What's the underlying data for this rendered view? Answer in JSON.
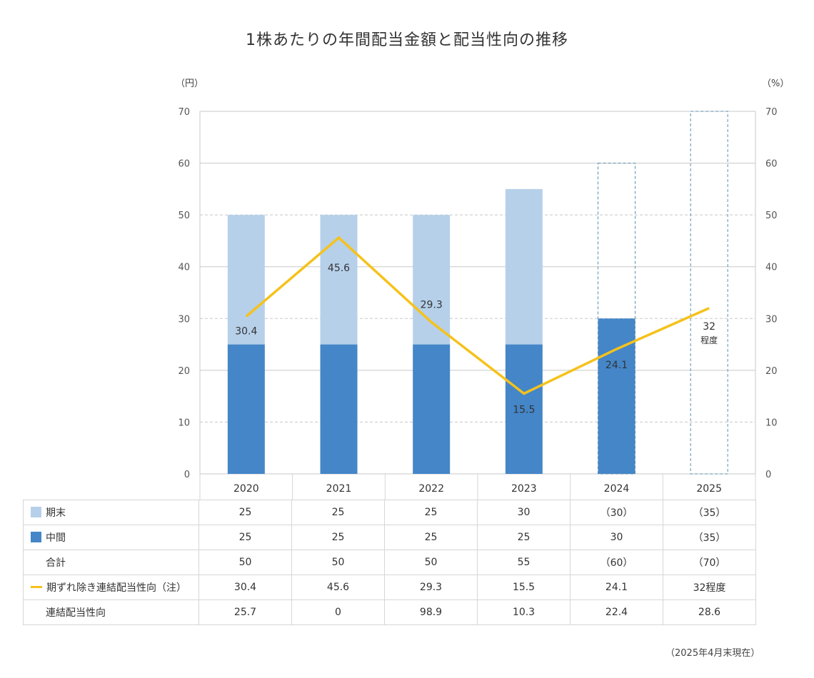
{
  "title": "1株あたりの年間配当金額と配当性向の推移",
  "left_unit": "（円）",
  "right_unit": "（%）",
  "note": "（2025年4月末現在）",
  "colors": {
    "period_end": "#b6d0ea",
    "interim": "#4486c8",
    "line": "#f5c21b",
    "forecast_border": "#5a8fb0",
    "grid": "#c8c8c8"
  },
  "chart_data": {
    "type": "bar",
    "title": "1株あたりの年間配当金額と配当性向の推移",
    "categories": [
      "2020",
      "2021",
      "2022",
      "2023",
      "2024",
      "2025"
    ],
    "ylim": [
      0,
      70
    ],
    "yticks": [
      0,
      10,
      20,
      30,
      40,
      50,
      60,
      70
    ],
    "y2lim": [
      0,
      70
    ],
    "ylabel": "（円）",
    "y2label": "（%）",
    "stacked": true,
    "series": [
      {
        "name": "中間",
        "type": "bar",
        "values": [
          25,
          25,
          25,
          25,
          30,
          null
        ]
      },
      {
        "name": "期末",
        "type": "bar",
        "values": [
          25,
          25,
          25,
          30,
          null,
          null
        ]
      },
      {
        "name": "期ずれ除き連結配当性向（注）",
        "type": "line",
        "axis": "right",
        "values": [
          30.4,
          45.6,
          29.3,
          15.5,
          24.1,
          32
        ]
      }
    ],
    "forecast_totals": [
      null,
      null,
      null,
      null,
      60,
      70
    ],
    "line_labels": [
      "30.4",
      "45.6",
      "29.3",
      "15.5",
      "24.1",
      "32"
    ],
    "line_label_extra": "程度"
  },
  "table": {
    "header": [
      "2020",
      "2021",
      "2022",
      "2023",
      "2024",
      "2025"
    ],
    "rows": [
      {
        "label": "期末",
        "swatch": "light",
        "values": [
          "25",
          "25",
          "25",
          "30",
          "（30）",
          "（35）"
        ]
      },
      {
        "label": "中間",
        "swatch": "dark",
        "values": [
          "25",
          "25",
          "25",
          "25",
          "30",
          "（35）"
        ]
      },
      {
        "label": "合計",
        "swatch": "none",
        "values": [
          "50",
          "50",
          "50",
          "55",
          "（60）",
          "（70）"
        ]
      },
      {
        "label": "期ずれ除き連結配当性向（注）",
        "swatch": "line",
        "values": [
          "30.4",
          "45.6",
          "29.3",
          "15.5",
          "24.1",
          "32程度"
        ]
      },
      {
        "label": "連結配当性向",
        "swatch": "none",
        "values": [
          "25.7",
          "0",
          "98.9",
          "10.3",
          "22.4",
          "28.6"
        ]
      }
    ]
  }
}
